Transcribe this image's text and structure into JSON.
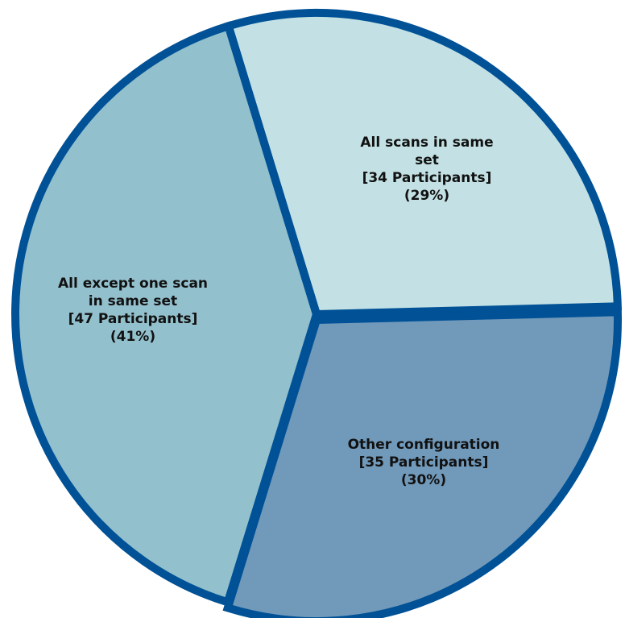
{
  "chart_data": {
    "type": "pie",
    "slices": [
      {
        "lines": [
          "All scans in same",
          "set",
          "[34 Participants]",
          "(29%)"
        ],
        "value": 34,
        "percent": 29,
        "color": "#c3e1e4"
      },
      {
        "lines": [
          "Other configuration",
          "[35 Participants]",
          "(30%)"
        ],
        "value": 35,
        "percent": 30,
        "color": "#7199ba"
      },
      {
        "lines": [
          "All except one scan",
          "in same set",
          "[47 Participants]",
          "(41%)"
        ],
        "value": 47,
        "percent": 41,
        "color": "#93c0cd"
      }
    ],
    "outline_color": "#005196",
    "legend": "none"
  }
}
